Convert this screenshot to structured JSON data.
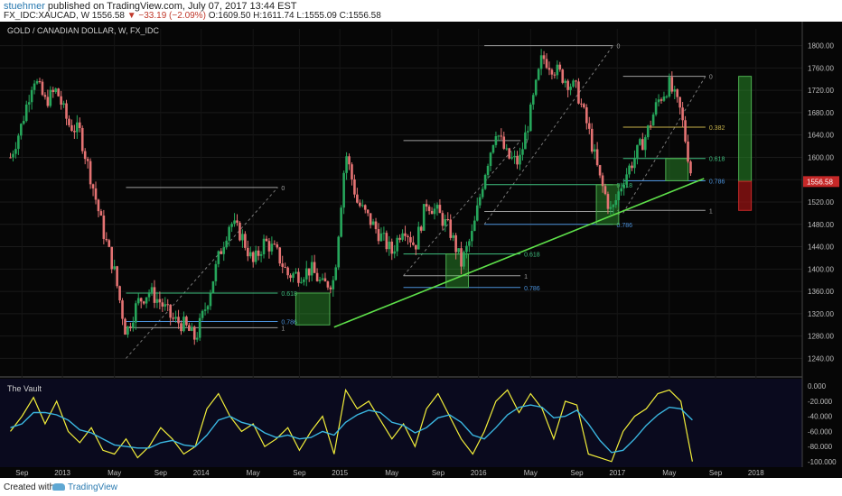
{
  "header": {
    "author": "stuehmer",
    "published": "published on TradingView.com, July 07, 2017 13:44 EST",
    "symbol": "FX_IDC:XAUCAD, W",
    "last": "1556.58",
    "change": "▼ −33.19 (−2.09%)",
    "ohlc": "O:1609.50 H:1611.74 L:1555.09 C:1556.58"
  },
  "footer": {
    "created": "Created with",
    "brand": "TradingView"
  },
  "chart_data": {
    "type": "candlestick",
    "title": "GOLD / CANADIAN DOLLAR, W, FX_IDC",
    "price_axis": {
      "ylim": [
        1210,
        1830
      ],
      "ticks": [
        "1800.00",
        "1760.00",
        "1720.00",
        "1680.00",
        "1640.00",
        "1600.00",
        "1560.00",
        "1520.00",
        "1480.00",
        "1440.00",
        "1400.00",
        "1360.00",
        "1320.00",
        "1280.00",
        "1240.00"
      ]
    },
    "last_price_label": "1556.58",
    "x_ticks": [
      "Sep",
      "2013",
      "May",
      "Sep",
      "2014",
      "May",
      "Sep",
      "2015",
      "May",
      "Sep",
      "2016",
      "May",
      "Sep",
      "2017",
      "May",
      "Sep",
      "2018"
    ],
    "price_path": [
      [
        "2012-08",
        1600
      ],
      [
        "2012-09",
        1660
      ],
      [
        "2012-10",
        1745
      ],
      [
        "2012-11",
        1700
      ],
      [
        "2012-12",
        1720
      ],
      [
        "2013-01",
        1660
      ],
      [
        "2013-02",
        1645
      ],
      [
        "2013-03",
        1560
      ],
      [
        "2013-04",
        1470
      ],
      [
        "2013-05",
        1395
      ],
      [
        "2013-06",
        1285
      ],
      [
        "2013-07",
        1340
      ],
      [
        "2013-08",
        1360
      ],
      [
        "2013-09",
        1340
      ],
      [
        "2013-10",
        1310
      ],
      [
        "2013-11",
        1300
      ],
      [
        "2013-12",
        1275
      ],
      [
        "2014-01",
        1340
      ],
      [
        "2014-02",
        1420
      ],
      [
        "2014-03",
        1485
      ],
      [
        "2014-04",
        1460
      ],
      [
        "2014-05",
        1410
      ],
      [
        "2014-06",
        1450
      ],
      [
        "2014-07",
        1430
      ],
      [
        "2014-08",
        1390
      ],
      [
        "2014-09",
        1390
      ],
      [
        "2014-10",
        1400
      ],
      [
        "2014-11",
        1370
      ],
      [
        "2014-12",
        1380
      ],
      [
        "2015-01",
        1610
      ],
      [
        "2015-02",
        1520
      ],
      [
        "2015-03",
        1490
      ],
      [
        "2015-04",
        1460
      ],
      [
        "2015-05",
        1430
      ],
      [
        "2015-06",
        1480
      ],
      [
        "2015-07",
        1440
      ],
      [
        "2015-08",
        1520
      ],
      [
        "2015-09",
        1500
      ],
      [
        "2015-10",
        1470
      ],
      [
        "2015-11",
        1410
      ],
      [
        "2015-12",
        1465
      ],
      [
        "2016-01",
        1570
      ],
      [
        "2016-02",
        1650
      ],
      [
        "2016-03",
        1600
      ],
      [
        "2016-04",
        1590
      ],
      [
        "2016-05",
        1680
      ],
      [
        "2016-06",
        1780
      ],
      [
        "2016-07",
        1760
      ],
      [
        "2016-08",
        1740
      ],
      [
        "2016-09",
        1720
      ],
      [
        "2016-10",
        1650
      ],
      [
        "2016-11",
        1560
      ],
      [
        "2016-12",
        1500
      ],
      [
        "2017-01",
        1560
      ],
      [
        "2017-02",
        1600
      ],
      [
        "2017-03",
        1640
      ],
      [
        "2017-04",
        1700
      ],
      [
        "2017-05",
        1730
      ],
      [
        "2017-06",
        1680
      ],
      [
        "2017-07",
        1557
      ]
    ],
    "trendline": {
      "from": [
        "2014-12",
        1296
      ],
      "to": [
        "2017-08",
        1562
      ]
    },
    "fib_sets": [
      {
        "anchor": [
          "2013-06",
          1240
        ],
        "high": [
          "2014-04",
          1546
        ],
        "levels": [
          {
            "label": "0",
            "price": 1546
          },
          {
            "label": "0.618",
            "price": 1357
          },
          {
            "label": "0.786",
            "price": 1306
          },
          {
            "label": "1",
            "price": 1295
          }
        ]
      },
      {
        "anchor": [
          "2015-06",
          1388
        ],
        "high": [
          "2016-01",
          1630
        ],
        "levels": [
          {
            "label": "0",
            "price": 1630
          },
          {
            "label": "0.618",
            "price": 1427
          },
          {
            "label": "0.786",
            "price": 1367
          },
          {
            "label": "1",
            "price": 1388
          }
        ]
      },
      {
        "anchor": [
          "2016-01",
          1480
        ],
        "high": [
          "2016-09",
          1800
        ],
        "levels": [
          {
            "label": "0",
            "price": 1800
          },
          {
            "label": "0.618",
            "price": 1551
          },
          {
            "label": "0.786",
            "price": 1480
          },
          {
            "label": "1",
            "price": 1503
          }
        ]
      },
      {
        "anchor": [
          "2017-01",
          1500
        ],
        "high": [
          "2017-05",
          1745
        ],
        "levels": [
          {
            "label": "0",
            "price": 1745
          },
          {
            "label": "0.382",
            "price": 1654
          },
          {
            "label": "0.618",
            "price": 1598
          },
          {
            "label": "0.786",
            "price": 1558
          },
          {
            "label": "1",
            "price": 1505
          }
        ]
      }
    ],
    "zones": [
      {
        "from": "2014-09",
        "to": "2014-11",
        "low": 1300,
        "high": 1357
      },
      {
        "from": "2015-10",
        "to": "2015-11",
        "low": 1367,
        "high": 1427
      },
      {
        "from": "2016-11",
        "to": "2016-12",
        "low": 1480,
        "high": 1551
      },
      {
        "from": "2017-05",
        "to": "2017-06",
        "low": 1558,
        "high": 1598
      }
    ],
    "rr_box": {
      "x": "2017-11",
      "entry": 1557,
      "target": 1745,
      "stop": 1505
    },
    "oscillator": {
      "name": "The Vault",
      "ylim": [
        -105,
        5
      ],
      "ticks": [
        "0.000",
        "-20.000",
        "-40.000",
        "-60.000",
        "-80.000",
        "-100.000"
      ],
      "dashed_levels": [
        -20,
        -80
      ],
      "fast": [
        -60,
        -40,
        -15,
        -50,
        -20,
        -60,
        -75,
        -55,
        -85,
        -90,
        -70,
        -95,
        -80,
        -55,
        -70,
        -90,
        -80,
        -30,
        -10,
        -40,
        -60,
        -50,
        -80,
        -70,
        -55,
        -85,
        -60,
        -40,
        -90,
        -5,
        -30,
        -20,
        -45,
        -70,
        -50,
        -80,
        -30,
        -10,
        -40,
        -70,
        -90,
        -60,
        -20,
        -5,
        -35,
        -10,
        -30,
        -70,
        -20,
        -25,
        -90,
        -95,
        -100,
        -60,
        -40,
        -30,
        -10,
        -5,
        -20,
        -100
      ],
      "slow": [
        -55,
        -50,
        -35,
        -35,
        -38,
        -45,
        -58,
        -62,
        -70,
        -78,
        -80,
        -82,
        -82,
        -75,
        -72,
        -78,
        -80,
        -65,
        -45,
        -40,
        -48,
        -52,
        -62,
        -68,
        -65,
        -70,
        -68,
        -60,
        -65,
        -48,
        -38,
        -32,
        -35,
        -48,
        -52,
        -62,
        -55,
        -42,
        -38,
        -48,
        -65,
        -70,
        -55,
        -38,
        -28,
        -25,
        -28,
        -42,
        -40,
        -32,
        -50,
        -72,
        -88,
        -85,
        -70,
        -52,
        -38,
        -28,
        -30,
        -45
      ]
    }
  }
}
